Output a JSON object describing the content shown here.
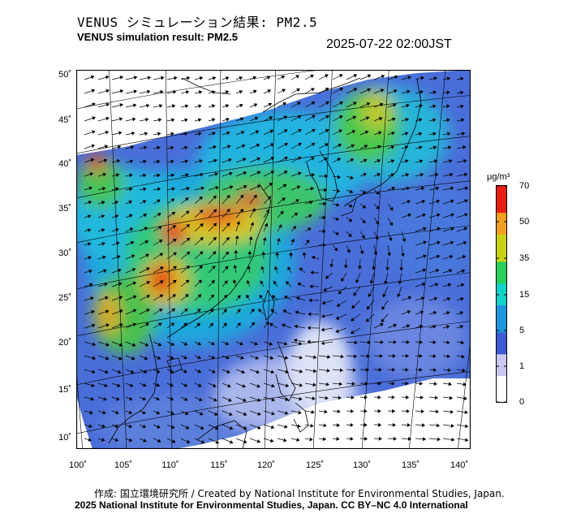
{
  "header": {
    "title_jp": "VENUS シミュレーション結果: PM2.5",
    "title_en": "VENUS simulation result: PM2.5",
    "timestamp": "2025-07-22 02:00JST"
  },
  "axes": {
    "lat_ticks": [
      "50˚",
      "45˚",
      "40˚",
      "35˚",
      "30˚",
      "25˚",
      "20˚",
      "15˚",
      "10˚"
    ],
    "lon_ticks": [
      "100˚",
      "105˚",
      "110˚",
      "115˚",
      "120˚",
      "125˚",
      "130˚",
      "135˚",
      "140˚"
    ]
  },
  "colorbar": {
    "unit": "μg/m³",
    "labels": [
      "70",
      "50",
      "35",
      "15",
      "5",
      "1",
      "0"
    ],
    "colors": [
      "#ffffff",
      "#c8c8f0",
      "#3c5ad2",
      "#1e96dc",
      "#14d2c8",
      "#28d25a",
      "#c8d214",
      "#f0a01e",
      "#e61e14"
    ]
  },
  "footer": {
    "credit": "作成: 国立環境研究所 / Created by National Institute for Environmental Studies, Japan.",
    "copyright": "2025 National Institute for Environmental Studies, Japan. CC BY–NC 4.0 International"
  }
}
